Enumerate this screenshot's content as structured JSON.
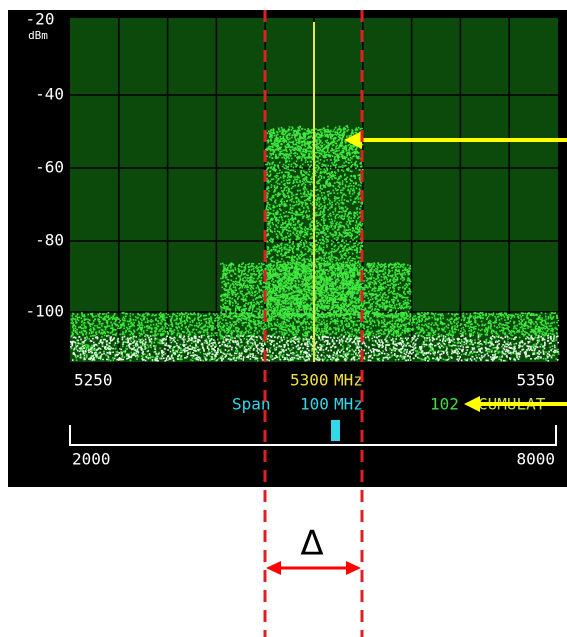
{
  "y_axis": {
    "labels": [
      "-20",
      "-40",
      "-60",
      "-80",
      "-100"
    ],
    "unit": "dBm"
  },
  "x_axis": {
    "start": "5250",
    "center": "5300",
    "center_unit": "MHz",
    "end": "5350"
  },
  "span": {
    "label": "Span",
    "value": "100",
    "unit": "MHz"
  },
  "count": {
    "value": "102",
    "label": "CUMULAT"
  },
  "scale": {
    "start": "2000",
    "end": "8000"
  },
  "annotation": {
    "delta": "Δ"
  }
}
